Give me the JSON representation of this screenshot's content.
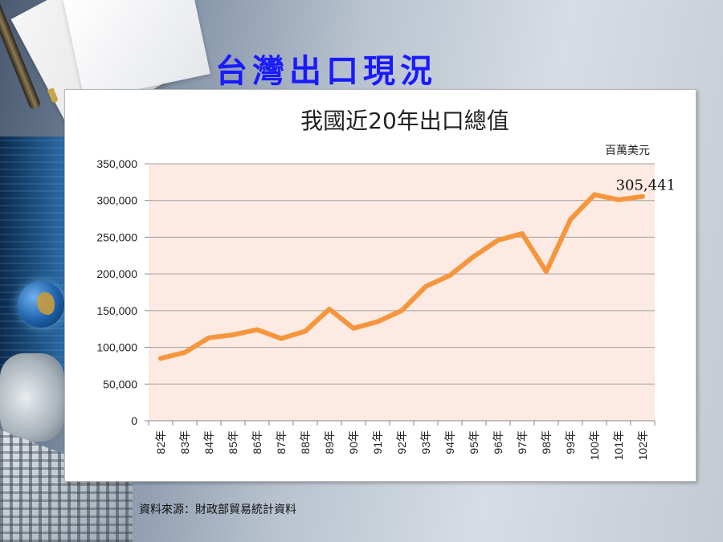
{
  "slide": {
    "title": "台灣出口現況",
    "source": "資料來源：財政部貿易統計資料"
  },
  "colors": {
    "title": "#1a1aff",
    "line": "#f5963c",
    "plot_bg": "#fdeae2",
    "grid": "#a0a0a0"
  },
  "chart_data": {
    "type": "line",
    "title": "我國近20年出口總值",
    "unit_label": "百萬美元",
    "xlabel": "",
    "ylabel": "",
    "categories": [
      "82年",
      "83年",
      "84年",
      "85年",
      "86年",
      "87年",
      "88年",
      "89年",
      "90年",
      "91年",
      "92年",
      "93年",
      "94年",
      "95年",
      "96年",
      "97年",
      "98年",
      "99年",
      "100年",
      "101年",
      "102年"
    ],
    "series": [
      {
        "values": [
          85000,
          93000,
          113000,
          117000,
          124000,
          112000,
          122000,
          152000,
          126000,
          135000,
          150000,
          183000,
          198000,
          224000,
          246000,
          255000,
          203000,
          274000,
          308000,
          301000,
          305441
        ]
      }
    ],
    "ylim": [
      0,
      350000
    ],
    "yticks": [
      0,
      50000,
      100000,
      150000,
      200000,
      250000,
      300000,
      350000
    ],
    "ytick_labels": [
      "0",
      "50,000",
      "100,000",
      "150,000",
      "200,000",
      "250,000",
      "300,000",
      "350,000"
    ],
    "grid": true,
    "legend": "none",
    "annotations": [
      {
        "text": "305,441",
        "category": "102年",
        "value": 305441
      }
    ]
  }
}
